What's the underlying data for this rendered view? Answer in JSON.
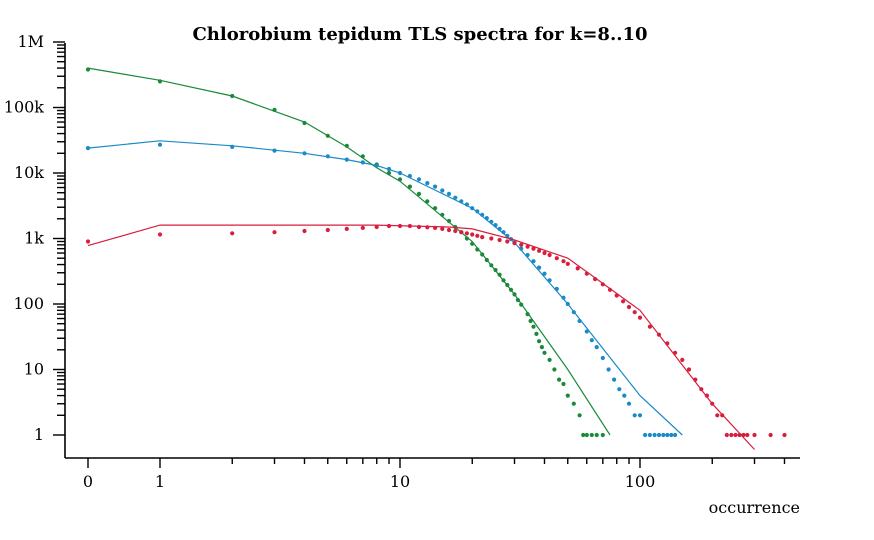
{
  "chart_data": {
    "type": "scatter",
    "title": "Chlorobium tepidum TLS spectra for k=8..10",
    "xlabel": "occurrence",
    "ylabel": "",
    "x_scale": "log (0 and 1 shown at left)",
    "y_scale": "log",
    "x_ticks": [
      {
        "value": 0,
        "label": "0"
      },
      {
        "value": 1,
        "label": "1"
      },
      {
        "value": 10,
        "label": "10"
      },
      {
        "value": 100,
        "label": "100"
      }
    ],
    "y_ticks": [
      {
        "value": 1,
        "label": "1"
      },
      {
        "value": 10,
        "label": "10"
      },
      {
        "value": 100,
        "label": "100"
      },
      {
        "value": 1000,
        "label": "1k"
      },
      {
        "value": 10000,
        "label": "10k"
      },
      {
        "value": 100000,
        "label": "100k"
      },
      {
        "value": 1000000,
        "label": "1M"
      }
    ],
    "xlim": [
      0,
      450
    ],
    "ylim": [
      0.4,
      1000000
    ],
    "grid": false,
    "legend": "none",
    "series": [
      {
        "color": "#1a8a3a",
        "points": [
          [
            0,
            380000
          ],
          [
            1,
            250000
          ],
          [
            2,
            150000
          ],
          [
            3,
            92000
          ],
          [
            4,
            58000
          ],
          [
            5,
            37000
          ],
          [
            6,
            26000
          ],
          [
            7,
            18000
          ],
          [
            8,
            13500
          ],
          [
            9,
            10000
          ],
          [
            10,
            8000
          ],
          [
            11,
            6200
          ],
          [
            12,
            4800
          ],
          [
            13,
            3700
          ],
          [
            14,
            2900
          ],
          [
            15,
            2300
          ],
          [
            16,
            1850
          ],
          [
            17,
            1500
          ],
          [
            18,
            1250
          ],
          [
            19,
            1000
          ],
          [
            20,
            830
          ],
          [
            21,
            680
          ],
          [
            22,
            570
          ],
          [
            23,
            470
          ],
          [
            24,
            390
          ],
          [
            25,
            330
          ],
          [
            26,
            280
          ],
          [
            27,
            230
          ],
          [
            28,
            195
          ],
          [
            29,
            165
          ],
          [
            30,
            140
          ],
          [
            31,
            115
          ],
          [
            32,
            98
          ],
          [
            34,
            70
          ],
          [
            35,
            55
          ],
          [
            36,
            45
          ],
          [
            37,
            35
          ],
          [
            38,
            27
          ],
          [
            39,
            22
          ],
          [
            40,
            18
          ],
          [
            42,
            14
          ],
          [
            44,
            10
          ],
          [
            46,
            7
          ],
          [
            48,
            6
          ],
          [
            50,
            4
          ],
          [
            53,
            3
          ],
          [
            56,
            2
          ],
          [
            58,
            1
          ],
          [
            60,
            1
          ],
          [
            63,
            1
          ],
          [
            66,
            1
          ],
          [
            70,
            1
          ]
        ],
        "fit": [
          [
            0,
            400000
          ],
          [
            1,
            260000
          ],
          [
            2,
            150000
          ],
          [
            4,
            60000
          ],
          [
            6,
            25000
          ],
          [
            8,
            12000
          ],
          [
            10,
            7500
          ],
          [
            20,
            900
          ],
          [
            30,
            140
          ],
          [
            50,
            10
          ],
          [
            75,
            1
          ]
        ]
      },
      {
        "color": "#1a8ac8",
        "points": [
          [
            0,
            24000
          ],
          [
            1,
            27000
          ],
          [
            2,
            25000
          ],
          [
            3,
            22000
          ],
          [
            4,
            20000
          ],
          [
            5,
            18000
          ],
          [
            6,
            16000
          ],
          [
            7,
            14500
          ],
          [
            8,
            13000
          ],
          [
            9,
            11500
          ],
          [
            10,
            10000
          ],
          [
            11,
            9000
          ],
          [
            12,
            8000
          ],
          [
            13,
            7000
          ],
          [
            14,
            6200
          ],
          [
            15,
            5400
          ],
          [
            16,
            4800
          ],
          [
            17,
            4200
          ],
          [
            18,
            3700
          ],
          [
            19,
            3300
          ],
          [
            20,
            2900
          ],
          [
            21,
            2600
          ],
          [
            22,
            2300
          ],
          [
            23,
            2050
          ],
          [
            24,
            1800
          ],
          [
            25,
            1600
          ],
          [
            26,
            1400
          ],
          [
            27,
            1250
          ],
          [
            28,
            1100
          ],
          [
            29,
            980
          ],
          [
            30,
            870
          ],
          [
            32,
            700
          ],
          [
            34,
            560
          ],
          [
            36,
            450
          ],
          [
            38,
            360
          ],
          [
            40,
            290
          ],
          [
            42,
            230
          ],
          [
            45,
            170
          ],
          [
            48,
            125
          ],
          [
            50,
            100
          ],
          [
            53,
            75
          ],
          [
            56,
            55
          ],
          [
            60,
            38
          ],
          [
            63,
            28
          ],
          [
            66,
            22
          ],
          [
            70,
            15
          ],
          [
            74,
            10
          ],
          [
            78,
            7
          ],
          [
            82,
            5
          ],
          [
            86,
            4
          ],
          [
            90,
            3
          ],
          [
            95,
            2
          ],
          [
            100,
            2
          ],
          [
            105,
            1
          ],
          [
            110,
            1
          ],
          [
            115,
            1
          ],
          [
            120,
            1
          ],
          [
            125,
            1
          ],
          [
            130,
            1
          ],
          [
            135,
            1
          ],
          [
            140,
            1
          ]
        ],
        "fit": [
          [
            0,
            24000
          ],
          [
            1,
            31000
          ],
          [
            2,
            26000
          ],
          [
            4,
            20000
          ],
          [
            6,
            16000
          ],
          [
            8,
            13000
          ],
          [
            10,
            10000
          ],
          [
            20,
            2900
          ],
          [
            30,
            870
          ],
          [
            50,
            100
          ],
          [
            100,
            4
          ],
          [
            150,
            1
          ]
        ]
      },
      {
        "color": "#d81e3c",
        "points": [
          [
            0,
            900
          ],
          [
            1,
            1150
          ],
          [
            2,
            1200
          ],
          [
            3,
            1250
          ],
          [
            4,
            1300
          ],
          [
            5,
            1350
          ],
          [
            6,
            1400
          ],
          [
            7,
            1450
          ],
          [
            8,
            1500
          ],
          [
            9,
            1550
          ],
          [
            10,
            1550
          ],
          [
            11,
            1550
          ],
          [
            12,
            1500
          ],
          [
            13,
            1480
          ],
          [
            14,
            1450
          ],
          [
            15,
            1400
          ],
          [
            16,
            1350
          ],
          [
            17,
            1300
          ],
          [
            18,
            1250
          ],
          [
            19,
            1200
          ],
          [
            20,
            1150
          ],
          [
            21,
            1100
          ],
          [
            22,
            1050
          ],
          [
            24,
            1000
          ],
          [
            26,
            950
          ],
          [
            28,
            900
          ],
          [
            30,
            850
          ],
          [
            32,
            800
          ],
          [
            34,
            750
          ],
          [
            36,
            700
          ],
          [
            38,
            650
          ],
          [
            40,
            600
          ],
          [
            42,
            560
          ],
          [
            45,
            500
          ],
          [
            48,
            450
          ],
          [
            50,
            410
          ],
          [
            55,
            350
          ],
          [
            60,
            290
          ],
          [
            65,
            240
          ],
          [
            70,
            200
          ],
          [
            75,
            165
          ],
          [
            80,
            135
          ],
          [
            85,
            110
          ],
          [
            90,
            90
          ],
          [
            95,
            75
          ],
          [
            100,
            62
          ],
          [
            110,
            45
          ],
          [
            120,
            34
          ],
          [
            130,
            25
          ],
          [
            140,
            18
          ],
          [
            150,
            14
          ],
          [
            160,
            10
          ],
          [
            170,
            7
          ],
          [
            180,
            5
          ],
          [
            190,
            4
          ],
          [
            200,
            3
          ],
          [
            210,
            2
          ],
          [
            220,
            2
          ],
          [
            230,
            1
          ],
          [
            240,
            1
          ],
          [
            250,
            1
          ],
          [
            260,
            1
          ],
          [
            270,
            1
          ],
          [
            280,
            1
          ],
          [
            300,
            1
          ],
          [
            350,
            1
          ],
          [
            400,
            1
          ]
        ],
        "fit": [
          [
            0,
            780
          ],
          [
            1,
            1600
          ],
          [
            2,
            1600
          ],
          [
            4,
            1600
          ],
          [
            8,
            1600
          ],
          [
            16,
            1500
          ],
          [
            20,
            1400
          ],
          [
            30,
            950
          ],
          [
            50,
            500
          ],
          [
            100,
            80
          ],
          [
            200,
            3
          ],
          [
            300,
            0.6
          ]
        ]
      }
    ]
  }
}
